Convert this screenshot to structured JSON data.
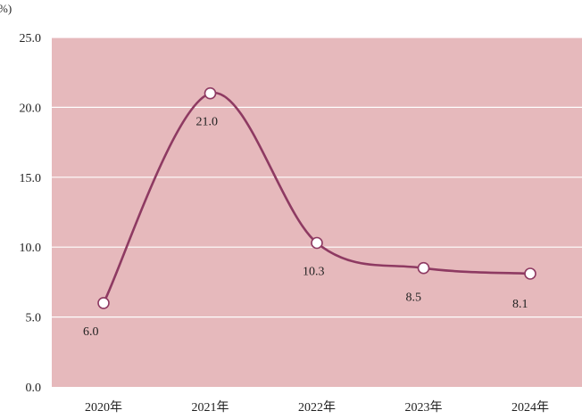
{
  "chart_data": {
    "type": "line",
    "unit_label": "%)",
    "categories": [
      "2020年",
      "2021年",
      "2022年",
      "2023年",
      "2024年"
    ],
    "series": [
      {
        "values": [
          6.0,
          21.0,
          10.3,
          8.5,
          8.1
        ]
      }
    ],
    "data_labels": [
      "6.0",
      "21.0",
      "10.3",
      "8.5",
      "8.1"
    ],
    "y_ticks": [
      "0.0",
      "5.0",
      "10.0",
      "15.0",
      "20.0",
      "25.0"
    ],
    "ylim": [
      0,
      25
    ],
    "grid": true,
    "colors": {
      "plot_background": "#e6b9bc",
      "line": "#8e3a62",
      "marker_fill": "#ffffff",
      "grid": "#ffffff"
    }
  }
}
